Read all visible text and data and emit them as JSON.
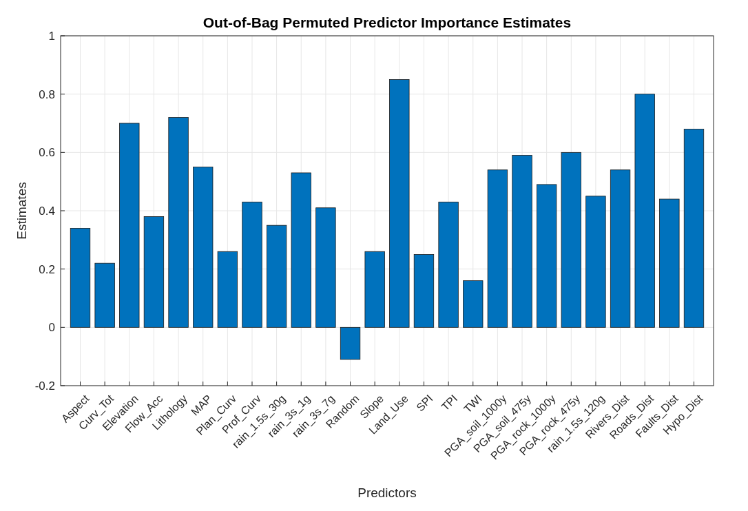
{
  "chart_data": {
    "type": "bar",
    "title": "Out-of-Bag Permuted Predictor Importance Estimates",
    "xlabel": "Predictors",
    "ylabel": "Estimates",
    "categories": [
      "Aspect",
      "Curv_Tot",
      "Elevation",
      "Flow_Acc",
      "Lithology",
      "MAP",
      "Plan_Curv",
      "Prof_Curv",
      "rain_1.5s_30g",
      "rain_3s_1g",
      "rain_3s_7g",
      "Random",
      "Slope",
      "Land_Use",
      "SPI",
      "TPI",
      "TWI",
      "PGA_soil_1000y",
      "PGA_soil_475y",
      "PGA_rock_1000y",
      "PGA_rock_475y",
      "rain_1.5s_120g",
      "Rivers_Dist",
      "Roads_Dist",
      "Faults_Dist",
      "Hypo_Dist"
    ],
    "values": [
      0.34,
      0.22,
      0.7,
      0.38,
      0.72,
      0.55,
      0.26,
      0.43,
      0.35,
      0.53,
      0.41,
      -0.11,
      0.26,
      0.85,
      0.25,
      0.43,
      0.16,
      0.54,
      0.59,
      0.49,
      0.6,
      0.45,
      0.54,
      0.8,
      0.44,
      0.68
    ],
    "color": "#0072bd",
    "ylim": [
      -0.2,
      1
    ],
    "yticks": [
      -0.2,
      0,
      0.2,
      0.4,
      0.6,
      0.8,
      1
    ],
    "grid": true
  }
}
